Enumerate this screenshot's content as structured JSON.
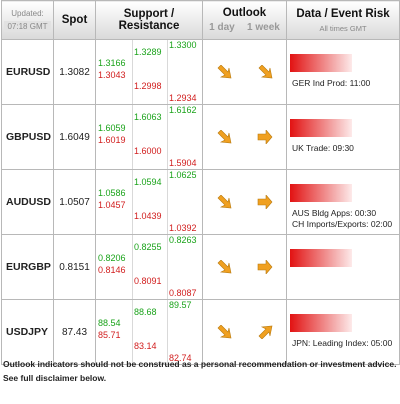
{
  "header": {
    "updated_label": "Updated:",
    "updated_time": "07:18 GMT",
    "spot": "Spot",
    "support_resistance": "Support / Resistance",
    "outlook": "Outlook",
    "day": "1 day",
    "week": "1 week",
    "data_event_risk": "Data / Event Risk",
    "all_times": "All times GMT"
  },
  "rows": [
    {
      "pair": "EURUSD",
      "spot": "1.3082",
      "s1": "1.3166",
      "s2": "1.3043",
      "m1": "1.3289",
      "m2": "1.2998",
      "r1": "1.3300",
      "r2": "1.2934",
      "events": [
        "GER Ind Prod: 11:00"
      ]
    },
    {
      "pair": "GBPUSD",
      "spot": "1.6049",
      "s1": "1.6059",
      "s2": "1.6019",
      "m1": "1.6063",
      "m2": "1.6000",
      "r1": "1.6162",
      "r2": "1.5904",
      "events": [
        "UK Trade: 09:30"
      ]
    },
    {
      "pair": "AUDUSD",
      "spot": "1.0507",
      "s1": "1.0586",
      "s2": "1.0457",
      "m1": "1.0594",
      "m2": "1.0439",
      "r1": "1.0625",
      "r2": "1.0392",
      "events": [
        "AUS Bldg Apps: 00:30",
        "CH Imports/Exports: 02:00"
      ]
    },
    {
      "pair": "EURGBP",
      "spot": "0.8151",
      "s1": "0.8206",
      "s2": "0.8146",
      "m1": "0.8255",
      "m2": "0.8091",
      "r1": "0.8263",
      "r2": "0.8087",
      "events": []
    },
    {
      "pair": "USDJPY",
      "spot": "87.43",
      "s1": "88.54",
      "s2": "85.71",
      "m1": "88.68",
      "m2": "83.14",
      "r1": "89.57",
      "r2": "82.74",
      "events": [
        "JPN: Leading Index: 05:00"
      ]
    }
  ],
  "outlook_icons": {
    "day": "arrow-down-right-icon",
    "week_1": "arrow-down-right-icon",
    "week_2": "arrow-right-icon",
    "week_3": "arrow-right-icon",
    "week_4": "arrow-right-icon",
    "week_5": "arrow-up-right-icon"
  },
  "colors": {
    "support": "#1aa31a",
    "resistance": "#d11d1d",
    "arrow": "#f0a020",
    "risk_bar": "#e21212"
  },
  "footer": {
    "line1": "Outlook indicators should not be construed as a personal recommendation or investment advice.",
    "line2": "See full disclaimer below."
  }
}
